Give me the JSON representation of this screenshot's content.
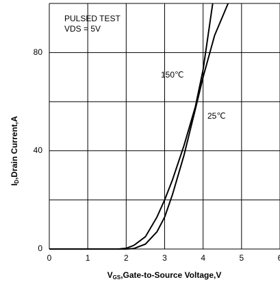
{
  "chart_data": {
    "type": "line",
    "annotations": [
      "PULSED TEST",
      "VDS = 5V"
    ],
    "x_label": {
      "main": "V",
      "sub": "GS",
      "rest": ",Gate-to-Source Voltage,V"
    },
    "y_label": {
      "main": "I",
      "sub": "D",
      "rest": ",Drain Current,A"
    },
    "xlim": [
      0,
      6
    ],
    "xticks": [
      0,
      1,
      2,
      3,
      4,
      5,
      6
    ],
    "ylim": [
      0,
      100
    ],
    "yticks": [
      0,
      40,
      80
    ],
    "ygrid": [
      0,
      20,
      40,
      60,
      80,
      100
    ],
    "grid": true,
    "series": [
      {
        "name": "25℃",
        "color": "#000000",
        "x": [
          0,
          2,
          2.2,
          2.5,
          2.8,
          3,
          3.2,
          3.5,
          3.8,
          4,
          4.3,
          4.65
        ],
        "values": [
          0,
          0,
          0.2,
          2,
          7,
          13,
          22,
          38,
          57,
          70,
          87,
          100
        ]
      },
      {
        "name": "150℃",
        "color": "#000000",
        "x": [
          0,
          1.8,
          2,
          2.2,
          2.5,
          2.8,
          3,
          3.2,
          3.5,
          3.8,
          4,
          4.25
        ],
        "values": [
          0,
          0,
          0.3,
          1.5,
          5,
          13,
          20,
          28,
          42,
          58,
          73,
          100
        ]
      }
    ]
  }
}
